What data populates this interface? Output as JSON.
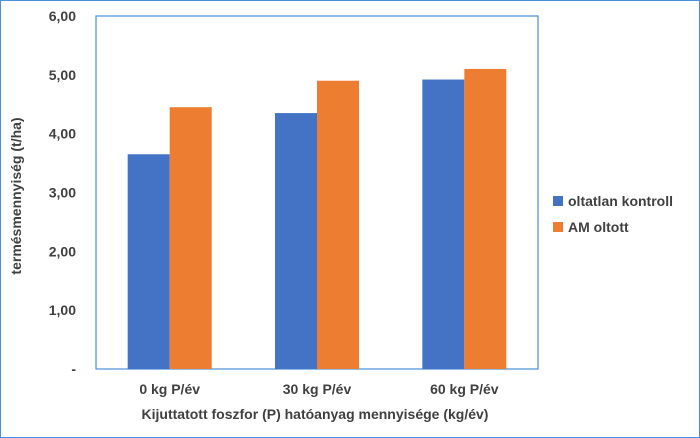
{
  "chart_data": {
    "type": "bar",
    "title": "",
    "xlabel": "Kijuttatott foszfor (P) hatóanyag mennyisége (kg/év)",
    "ylabel": "termésmennyiség (t/ha)",
    "categories": [
      "0 kg P/év",
      "30 kg P/év",
      "60 kg P/év"
    ],
    "series": [
      {
        "name": "oltatlan kontroll",
        "color": "#4472c4",
        "values": [
          3.65,
          4.35,
          4.92
        ]
      },
      {
        "name": "AM oltott",
        "color": "#ed7d31",
        "values": [
          4.45,
          4.9,
          5.1
        ]
      }
    ],
    "ylim": [
      0,
      6
    ],
    "yticks": [
      "-",
      "1,00",
      "2,00",
      "3,00",
      "4,00",
      "5,00",
      "6,00"
    ],
    "ytick_values": [
      0,
      1,
      2,
      3,
      4,
      5,
      6
    ],
    "grid": false,
    "legend_position": "right"
  }
}
